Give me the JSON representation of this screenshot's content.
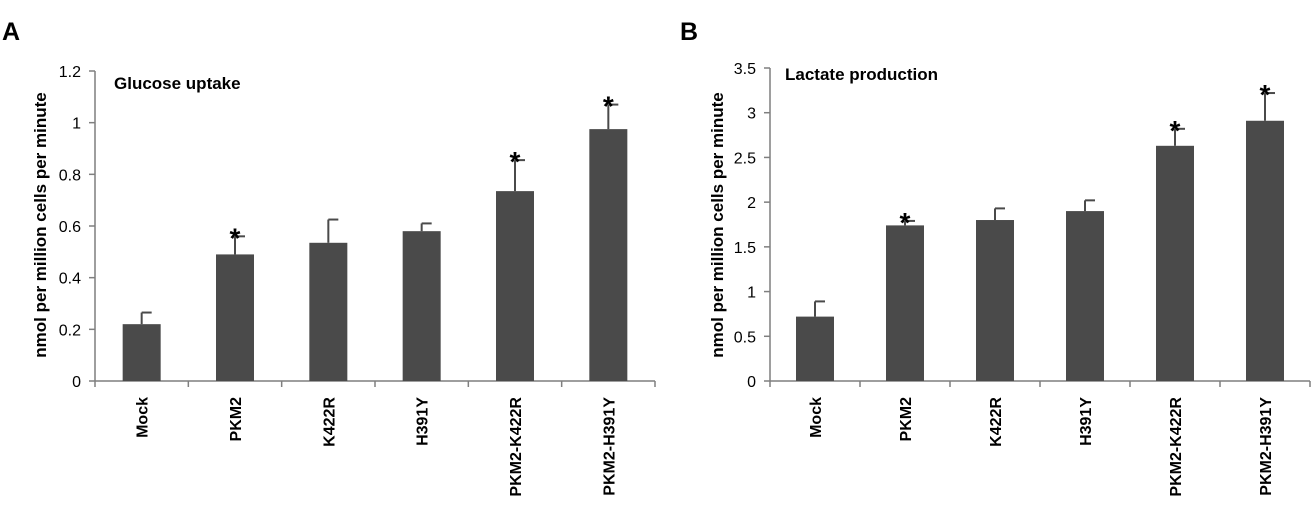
{
  "figure": {
    "panels": [
      {
        "letter": "A"
      },
      {
        "letter": "B"
      }
    ]
  },
  "style": {
    "bar_color": "#4a4a4a",
    "axis_color": "#7f7f7f",
    "text_color": "#000000"
  },
  "chart_data": [
    {
      "type": "bar",
      "title": "Glucose uptake",
      "xlabel": "",
      "ylabel": "nmol per million cells per minute",
      "ylim": [
        0,
        1.2
      ],
      "yticks": [
        0,
        0.2,
        0.4,
        0.6,
        0.8,
        1,
        1.2
      ],
      "yticklabels": [
        "0",
        "0.2",
        "0.4",
        "0.6",
        "0.8",
        "1",
        "1.2"
      ],
      "categories": [
        "Mock",
        "PKM2",
        "K422R",
        "H391Y",
        "PKM2-K422R",
        "PKM2-H391Y"
      ],
      "values": [
        0.22,
        0.49,
        0.535,
        0.58,
        0.735,
        0.975
      ],
      "errors": [
        0.045,
        0.07,
        0.09,
        0.03,
        0.12,
        0.095
      ],
      "significance": [
        "",
        "*",
        "",
        "",
        "*",
        "*"
      ],
      "grid": false,
      "legend": "none"
    },
    {
      "type": "bar",
      "title": "Lactate production",
      "xlabel": "",
      "ylabel": "nmol per million cells per minute",
      "ylim": [
        0,
        3.5
      ],
      "yticks": [
        0,
        0.5,
        1,
        1.5,
        2,
        2.5,
        3,
        3.5
      ],
      "yticklabels": [
        "0",
        "0.5",
        "1",
        "1.5",
        "2",
        "2.5",
        "3",
        "3.5"
      ],
      "categories": [
        "Mock",
        "PKM2",
        "K422R",
        "H391Y",
        "PKM2-K422R",
        "PKM2-H391Y"
      ],
      "values": [
        0.72,
        1.74,
        1.8,
        1.9,
        2.63,
        2.91
      ],
      "errors": [
        0.17,
        0.05,
        0.13,
        0.12,
        0.19,
        0.31
      ],
      "significance": [
        "",
        "*",
        "",
        "",
        "*",
        "*"
      ],
      "grid": false,
      "legend": "none"
    }
  ]
}
